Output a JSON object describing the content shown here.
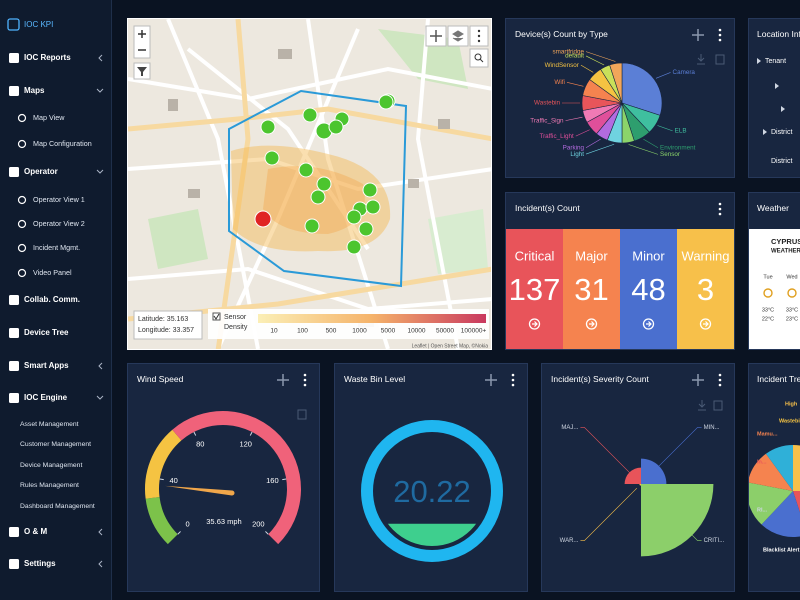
{
  "sidebar": {
    "brand": "IOC KPI",
    "items": [
      {
        "label": "IOC Reports"
      },
      {
        "label": "Maps",
        "children": [
          "Map View",
          "Map Configuration"
        ]
      },
      {
        "label": "Operator",
        "children": [
          "Operator View 1",
          "Operator View 2",
          "Incident Mgmt.",
          "Video Panel"
        ]
      },
      {
        "label": "Collab. Comm."
      },
      {
        "label": "Device Tree"
      },
      {
        "label": "Smart Apps"
      },
      {
        "label": "IOC Engine",
        "children": [
          "Asset Management",
          "Customer Management",
          "Device Management",
          "Rules Management",
          "Dashboard Management"
        ]
      },
      {
        "label": "O & M"
      },
      {
        "label": "Settings"
      }
    ]
  },
  "map": {
    "latitude": "Latitude: 35.163",
    "longitude": "Longitude: 33.357",
    "legend": {
      "sensor": "Sensor",
      "density": "Density",
      "scale": [
        10,
        100,
        500,
        1000,
        5000,
        10000,
        50000,
        {
          "value": 100000,
          "label": "100000+"
        }
      ]
    },
    "attribution": "Leaflet | Open Street Map, ©Nokia"
  },
  "device_count": {
    "title": "Device(s) Count by Type",
    "chart": {
      "type": "pie",
      "categories": [
        "Camera",
        "ELB",
        "Environment",
        "Sensor",
        "Light",
        "Parking",
        "Traffic_Light",
        "Traffic_Sign",
        "Wastebin",
        "Wifi",
        "WindSensor",
        "default",
        "smartfridge"
      ],
      "values": [
        30,
        8,
        7,
        5,
        6,
        5,
        6,
        5,
        6,
        7,
        6,
        4,
        5
      ],
      "colors": [
        "#5b7fd6",
        "#3fbf9f",
        "#2e9e6e",
        "#8bd46a",
        "#6fd3e0",
        "#b36be0",
        "#e04f9a",
        "#f07ab5",
        "#e8555a",
        "#f5834f",
        "#f5c342",
        "#c9e05a",
        "#f2a65a"
      ]
    }
  },
  "location_info": {
    "title": "Location Info",
    "items": [
      "Tenant",
      "District",
      "District"
    ]
  },
  "incident_count": {
    "title": "Incident(s) Count",
    "tiles": [
      {
        "label": "Critical",
        "value": 137,
        "color": "#e8545a"
      },
      {
        "label": "Major",
        "value": 31,
        "color": "#f5834f"
      },
      {
        "label": "Minor",
        "value": 48,
        "color": "#4a6fcf"
      },
      {
        "label": "Warning",
        "value": 3,
        "color": "#f7c04a"
      }
    ]
  },
  "weather": {
    "title": "Weather",
    "location": "CYPRUS",
    "heading": "WEATHER",
    "days": [
      {
        "day": "Tue",
        "high": "33°C",
        "low": "22°C"
      },
      {
        "day": "Wed",
        "high": "33°C",
        "low": "23°C"
      }
    ]
  },
  "wind_speed": {
    "title": "Wind Speed",
    "gauge": {
      "lim": [
        0,
        200
      ],
      "ticks": [
        0,
        40,
        80,
        120,
        160,
        200
      ],
      "value": 35.63,
      "value_label": "35.63 mph",
      "bands": [
        {
          "from": 0,
          "to": 28,
          "color": "#7cc24a"
        },
        {
          "from": 28,
          "to": 70,
          "color": "#f5c342"
        },
        {
          "from": 70,
          "to": 200,
          "color": "#f0627a"
        }
      ]
    }
  },
  "waste_bin": {
    "title": "Waste Bin Level",
    "value": 20.22
  },
  "severity": {
    "title": "Incident(s) Severity Count",
    "chart": {
      "type": "polar",
      "categories": [
        "MIN...",
        "CRITI...",
        "WAR...",
        "MAJ..."
      ],
      "values": [
        48,
        137,
        3,
        31
      ],
      "colors": [
        "#4a6fcf",
        "#8ccf6a",
        "#f7c04a",
        "#e8545a"
      ],
      "rlim": [
        0,
        140
      ]
    }
  },
  "incident_trend": {
    "title": "Incident Trend",
    "labels": [
      "High",
      "Wastebin Fu...",
      "Mamu...",
      "In...",
      "RI...",
      "Blacklist Alert"
    ]
  }
}
